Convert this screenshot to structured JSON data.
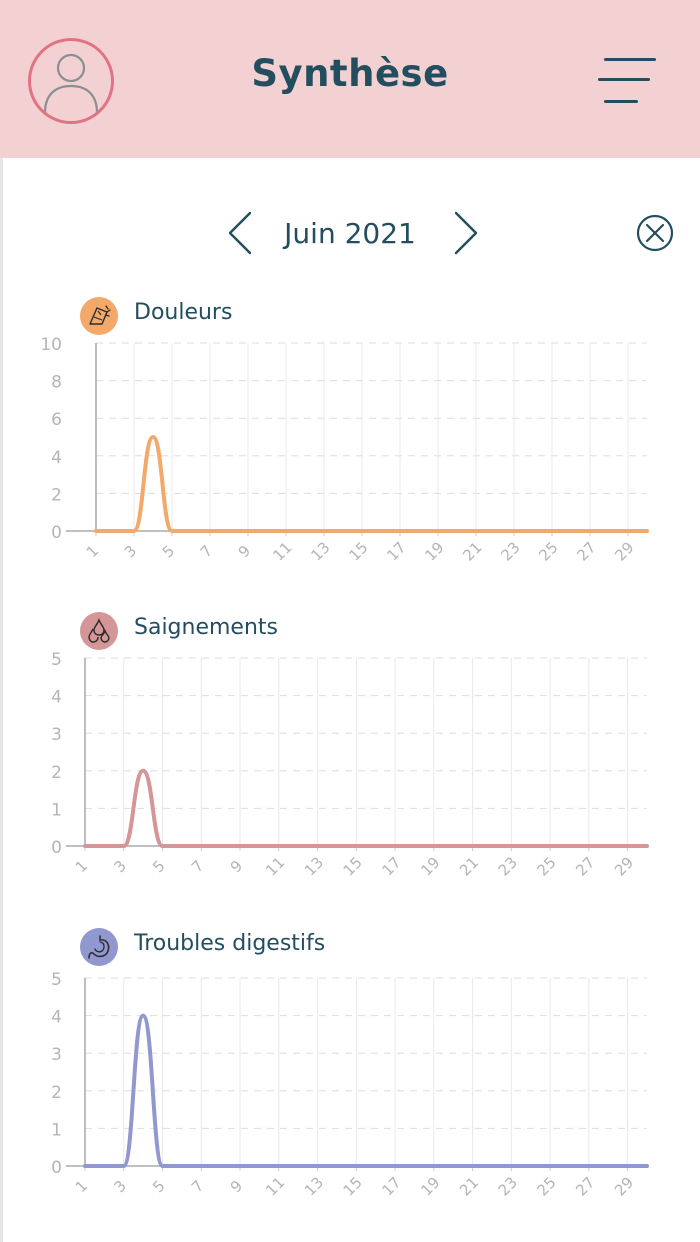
{
  "header": {
    "title": "Synthèse",
    "avatar_icon": "user-avatar-icon",
    "menu_icon": "hamburger-menu-icon",
    "background_color": "#f3d1d3",
    "avatar_border_color": "#e07384"
  },
  "month_nav": {
    "label": "Juin 2021",
    "prev_icon": "chevron-left-icon",
    "next_icon": "chevron-right-icon",
    "close_icon": "close-circle-icon"
  },
  "chart_data": [
    {
      "type": "line",
      "title": "Douleurs",
      "icon": "pain-icon",
      "color": "#f2a96a",
      "icon_bg": "#f2a96a",
      "x": [
        1,
        2,
        3,
        4,
        5,
        6,
        7,
        8,
        9,
        10,
        11,
        12,
        13,
        14,
        15,
        16,
        17,
        18,
        19,
        20,
        21,
        22,
        23,
        24,
        25,
        26,
        27,
        28,
        29,
        30
      ],
      "x_tick_labels": [
        "1",
        "3",
        "5",
        "7",
        "9",
        "11",
        "13",
        "15",
        "17",
        "19",
        "21",
        "23",
        "25",
        "27",
        "29"
      ],
      "y_ticks": [
        "0",
        "2",
        "4",
        "6",
        "8",
        "10"
      ],
      "ylim": [
        0,
        10
      ],
      "series": [
        {
          "values": [
            0,
            0,
            0,
            5,
            0,
            0,
            0,
            0,
            0,
            0,
            0,
            0,
            0,
            0,
            0,
            0,
            0,
            0,
            0,
            0,
            0,
            0,
            0,
            0,
            0,
            0,
            0,
            0,
            0,
            0
          ]
        }
      ],
      "grid": true
    },
    {
      "type": "line",
      "title": "Saignements",
      "icon": "blood-drops-icon",
      "color": "#d49696",
      "icon_bg": "#d49696",
      "x": [
        1,
        2,
        3,
        4,
        5,
        6,
        7,
        8,
        9,
        10,
        11,
        12,
        13,
        14,
        15,
        16,
        17,
        18,
        19,
        20,
        21,
        22,
        23,
        24,
        25,
        26,
        27,
        28,
        29,
        30
      ],
      "x_tick_labels": [
        "1",
        "3",
        "5",
        "7",
        "9",
        "11",
        "13",
        "15",
        "17",
        "19",
        "21",
        "23",
        "25",
        "27",
        "29"
      ],
      "y_ticks": [
        "0",
        "1",
        "2",
        "3",
        "4",
        "5"
      ],
      "ylim": [
        0,
        5
      ],
      "series": [
        {
          "values": [
            0,
            0,
            0,
            2,
            0,
            0,
            0,
            0,
            0,
            0,
            0,
            0,
            0,
            0,
            0,
            0,
            0,
            0,
            0,
            0,
            0,
            0,
            0,
            0,
            0,
            0,
            0,
            0,
            0,
            0
          ]
        }
      ],
      "grid": true
    },
    {
      "type": "line",
      "title": "Troubles digestifs",
      "icon": "stomach-icon",
      "color": "#9197cf",
      "icon_bg": "#9197cf",
      "x": [
        1,
        2,
        3,
        4,
        5,
        6,
        7,
        8,
        9,
        10,
        11,
        12,
        13,
        14,
        15,
        16,
        17,
        18,
        19,
        20,
        21,
        22,
        23,
        24,
        25,
        26,
        27,
        28,
        29,
        30
      ],
      "x_tick_labels": [
        "1",
        "3",
        "5",
        "7",
        "9",
        "11",
        "13",
        "15",
        "17",
        "19",
        "21",
        "23",
        "25",
        "27",
        "29"
      ],
      "y_ticks": [
        "0",
        "1",
        "2",
        "3",
        "4",
        "5"
      ],
      "ylim": [
        0,
        5
      ],
      "series": [
        {
          "values": [
            0,
            0,
            0,
            4,
            0,
            0,
            0,
            0,
            0,
            0,
            0,
            0,
            0,
            0,
            0,
            0,
            0,
            0,
            0,
            0,
            0,
            0,
            0,
            0,
            0,
            0,
            0,
            0,
            0,
            0
          ]
        }
      ],
      "grid": true
    }
  ]
}
